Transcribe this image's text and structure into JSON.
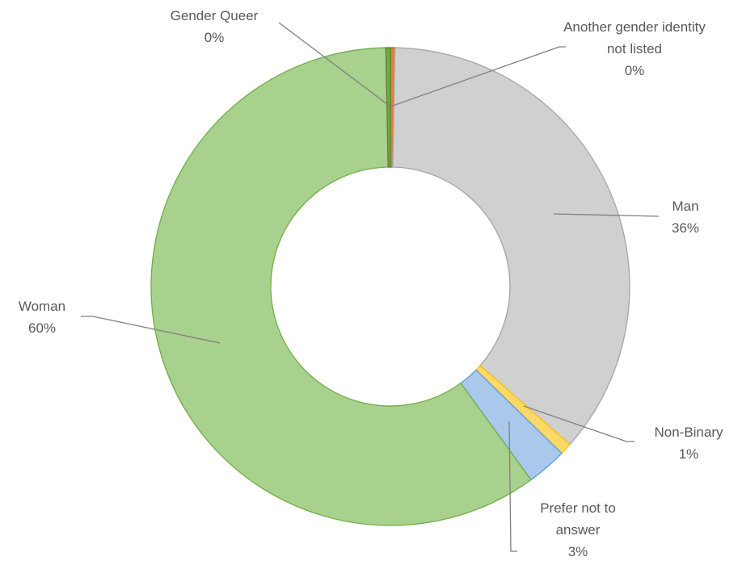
{
  "chart_data": {
    "type": "donut",
    "categories": [
      "Another gender identity not listed",
      "Man",
      "Non-Binary",
      "Prefer not to answer",
      "Woman",
      "Gender Queer"
    ],
    "values": [
      0.3,
      36.2,
      0.8,
      2.7,
      59.7,
      0.3
    ],
    "value_labels": [
      "0%",
      "36%",
      "1%",
      "3%",
      "60%",
      "0%"
    ],
    "colors": [
      "#ed7d31",
      "#d0d0d0",
      "#ffd966",
      "#a9c8ec",
      "#a9d18e",
      "#70ad47"
    ]
  }
}
